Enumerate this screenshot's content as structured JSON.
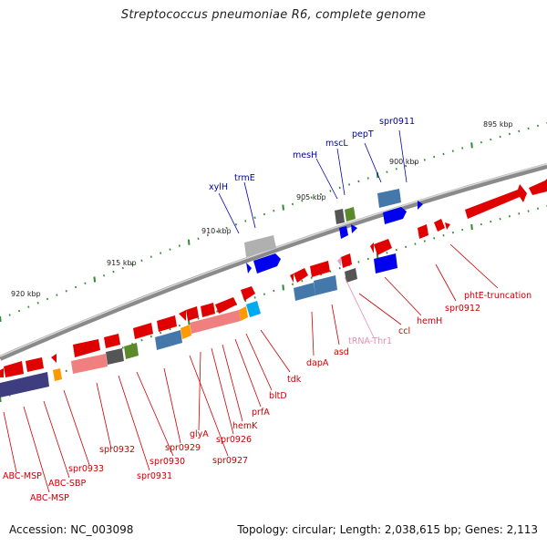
{
  "header": {
    "title": "Streptococcus pneumoniae R6, complete genome"
  },
  "footer": {
    "accession": "Accession: NC_003098",
    "summary": "Topology: circular; Length: 2,038,615 bp; Genes: 2,113"
  },
  "colors": {
    "backbone": "#7a7a7a",
    "tick": "#2e8b2e",
    "label_forward": "#0000aa",
    "label_reverse": "#cc0000",
    "label_rna": "#e58fb0"
  },
  "scale_labels": [
    {
      "text": "920 kbp"
    },
    {
      "text": "915 kbp"
    },
    {
      "text": "910 kbp"
    },
    {
      "text": "905 kbp"
    },
    {
      "text": "900 kbp"
    },
    {
      "text": "895 kbp"
    }
  ],
  "gene_labels": [
    {
      "text": "spr0911",
      "strand": "forward"
    },
    {
      "text": "pepT",
      "strand": "forward"
    },
    {
      "text": "mscL",
      "strand": "forward"
    },
    {
      "text": "mesH",
      "strand": "forward"
    },
    {
      "text": "trmE",
      "strand": "forward"
    },
    {
      "text": "xylH",
      "strand": "forward"
    },
    {
      "text": "phtE-truncation",
      "strand": "reverse"
    },
    {
      "text": "spr0912",
      "strand": "reverse"
    },
    {
      "text": "hemH",
      "strand": "reverse"
    },
    {
      "text": "ccl",
      "strand": "reverse"
    },
    {
      "text": "tRNA-Thr1",
      "strand": "rna"
    },
    {
      "text": "asd",
      "strand": "reverse"
    },
    {
      "text": "dapA",
      "strand": "reverse"
    },
    {
      "text": "tdk",
      "strand": "reverse"
    },
    {
      "text": "bltD",
      "strand": "reverse"
    },
    {
      "text": "prfA",
      "strand": "reverse"
    },
    {
      "text": "hemK",
      "strand": "reverse"
    },
    {
      "text": "spr0926",
      "strand": "reverse"
    },
    {
      "text": "glyA",
      "strand": "reverse"
    },
    {
      "text": "spr0927",
      "strand": "reverse"
    },
    {
      "text": "spr0929",
      "strand": "reverse"
    },
    {
      "text": "spr0930",
      "strand": "reverse"
    },
    {
      "text": "spr0931",
      "strand": "reverse"
    },
    {
      "text": "spr0932",
      "strand": "reverse"
    },
    {
      "text": "spr0933",
      "strand": "reverse"
    },
    {
      "text": "ABC-SBP",
      "strand": "reverse"
    },
    {
      "text": "ABC-MSP",
      "strand": "reverse"
    },
    {
      "text": "ABC-MSP",
      "strand": "reverse"
    }
  ]
}
